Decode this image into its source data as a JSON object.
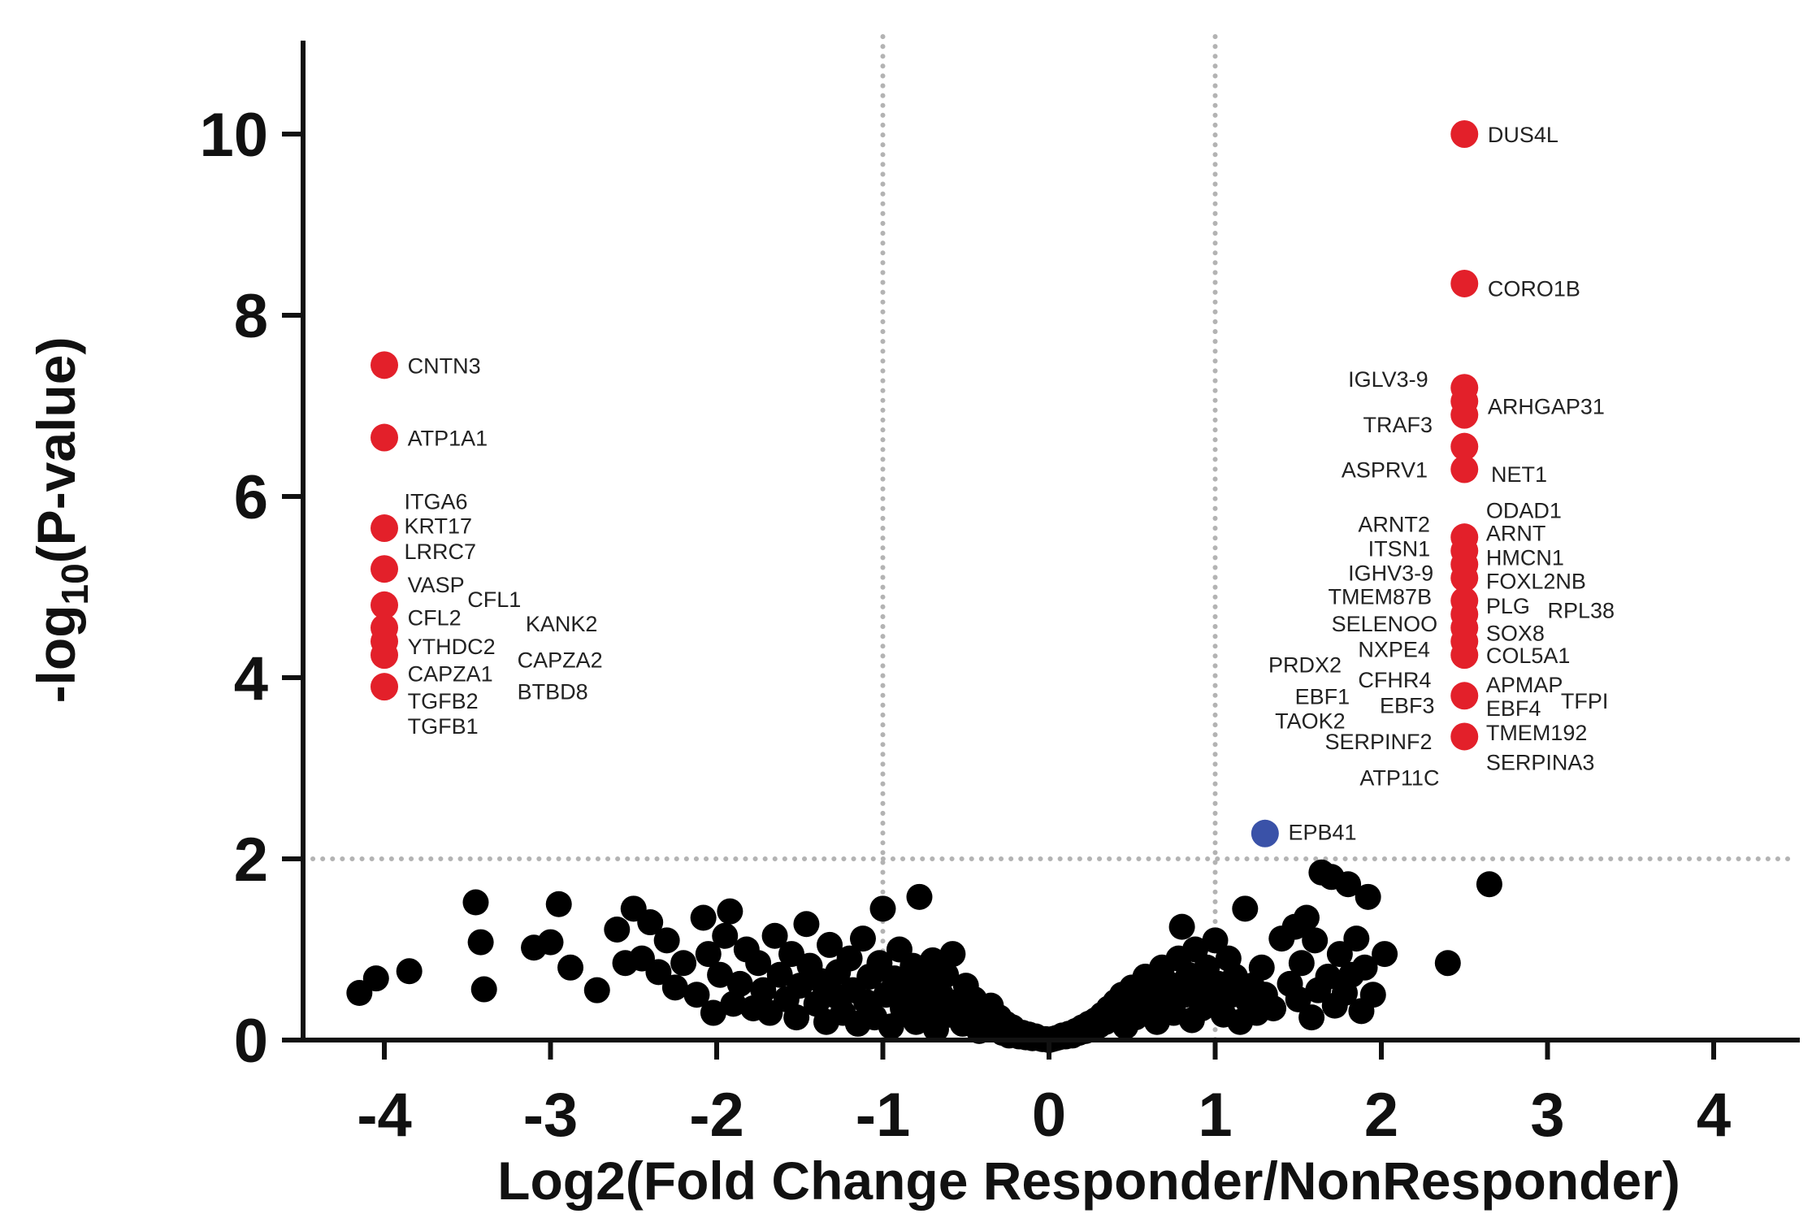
{
  "chart_data": {
    "type": "scatter",
    "title": "",
    "xlabel": "Log2(Fold Change Responder/NonResponder)",
    "ylabel": {
      "prefix": "-log",
      "subscript": "10",
      "suffix": "(P-value)"
    },
    "xlim": [
      -4.5,
      4.5
    ],
    "ylim": [
      0,
      11
    ],
    "xticks": [
      "-4",
      "-3",
      "-2",
      "-1",
      "0",
      "1",
      "2",
      "3",
      "4"
    ],
    "yticks": [
      "0",
      "2",
      "4",
      "6",
      "8",
      "10"
    ],
    "thresholds": {
      "x": [
        -1,
        1
      ],
      "y": 2
    },
    "grid": false,
    "colors": {
      "down": "#e3202a",
      "up": "#e3202a",
      "moderate": "#3a52a8",
      "nonsignificant": "#000000"
    },
    "significant_points": [
      {
        "x": 2.5,
        "y": 10.0,
        "color": "up"
      },
      {
        "x": 2.5,
        "y": 8.35,
        "color": "up"
      },
      {
        "x": 2.5,
        "y": 7.2,
        "color": "up"
      },
      {
        "x": 2.5,
        "y": 7.05,
        "color": "up"
      },
      {
        "x": 2.5,
        "y": 6.9,
        "color": "up"
      },
      {
        "x": 2.5,
        "y": 6.55,
        "color": "up"
      },
      {
        "x": 2.5,
        "y": 6.3,
        "color": "up"
      },
      {
        "x": 2.5,
        "y": 5.55,
        "color": "up"
      },
      {
        "x": 2.5,
        "y": 5.4,
        "color": "up"
      },
      {
        "x": 2.5,
        "y": 5.25,
        "color": "up"
      },
      {
        "x": 2.5,
        "y": 5.1,
        "color": "up"
      },
      {
        "x": 2.5,
        "y": 4.85,
        "color": "up"
      },
      {
        "x": 2.5,
        "y": 4.7,
        "color": "up"
      },
      {
        "x": 2.5,
        "y": 4.55,
        "color": "up"
      },
      {
        "x": 2.5,
        "y": 4.4,
        "color": "up"
      },
      {
        "x": 2.5,
        "y": 4.25,
        "color": "up"
      },
      {
        "x": 2.5,
        "y": 3.8,
        "color": "up"
      },
      {
        "x": 2.5,
        "y": 3.35,
        "color": "up"
      },
      {
        "x": -4.0,
        "y": 7.45,
        "color": "down"
      },
      {
        "x": -4.0,
        "y": 6.65,
        "color": "down"
      },
      {
        "x": -4.0,
        "y": 5.65,
        "color": "down"
      },
      {
        "x": -4.0,
        "y": 5.2,
        "color": "down"
      },
      {
        "x": -4.0,
        "y": 4.8,
        "color": "down"
      },
      {
        "x": -4.0,
        "y": 4.55,
        "color": "down"
      },
      {
        "x": -4.0,
        "y": 4.4,
        "color": "down"
      },
      {
        "x": -4.0,
        "y": 4.25,
        "color": "down"
      },
      {
        "x": -4.0,
        "y": 3.9,
        "color": "down"
      },
      {
        "x": 1.3,
        "y": 2.28,
        "color": "moderate"
      }
    ],
    "background_points": [
      [
        -4.15,
        0.52
      ],
      [
        -4.05,
        0.68
      ],
      [
        -3.85,
        0.76
      ],
      [
        -3.45,
        1.52
      ],
      [
        -3.42,
        1.08
      ],
      [
        -3.4,
        0.56
      ],
      [
        -3.1,
        1.02
      ],
      [
        -3.0,
        1.08
      ],
      [
        -2.95,
        1.5
      ],
      [
        -2.88,
        0.8
      ],
      [
        -2.72,
        0.55
      ],
      [
        -2.6,
        1.22
      ],
      [
        -2.55,
        0.85
      ],
      [
        -2.5,
        1.45
      ],
      [
        -2.45,
        0.9
      ],
      [
        -2.4,
        1.3
      ],
      [
        -2.35,
        0.75
      ],
      [
        -2.3,
        1.1
      ],
      [
        -2.25,
        0.58
      ],
      [
        -2.2,
        0.85
      ],
      [
        -2.12,
        0.5
      ],
      [
        -2.08,
        1.35
      ],
      [
        -2.05,
        0.95
      ],
      [
        -2.02,
        0.3
      ],
      [
        -1.98,
        0.72
      ],
      [
        -1.95,
        1.15
      ],
      [
        -1.92,
        1.42
      ],
      [
        -1.9,
        0.4
      ],
      [
        -1.86,
        0.62
      ],
      [
        -1.82,
        1.0
      ],
      [
        -1.78,
        0.35
      ],
      [
        -1.75,
        0.85
      ],
      [
        -1.72,
        0.55
      ],
      [
        -1.68,
        0.3
      ],
      [
        -1.65,
        1.15
      ],
      [
        -1.62,
        0.72
      ],
      [
        -1.58,
        0.45
      ],
      [
        -1.55,
        0.95
      ],
      [
        -1.52,
        0.25
      ],
      [
        -1.5,
        0.6
      ],
      [
        -1.46,
        1.28
      ],
      [
        -1.44,
        0.82
      ],
      [
        -1.4,
        0.4
      ],
      [
        -1.37,
        0.65
      ],
      [
        -1.34,
        0.2
      ],
      [
        -1.32,
        1.05
      ],
      [
        -1.3,
        0.5
      ],
      [
        -1.27,
        0.75
      ],
      [
        -1.24,
        0.3
      ],
      [
        -1.2,
        0.9
      ],
      [
        -1.18,
        0.55
      ],
      [
        -1.15,
        0.18
      ],
      [
        -1.12,
        1.12
      ],
      [
        -1.1,
        0.42
      ],
      [
        -1.08,
        0.7
      ],
      [
        -1.05,
        0.25
      ],
      [
        -1.02,
        0.85
      ],
      [
        -1.0,
        1.45
      ],
      [
        -0.98,
        0.5
      ],
      [
        -0.95,
        0.15
      ],
      [
        -0.93,
        0.68
      ],
      [
        -0.9,
        1.0
      ],
      [
        -0.88,
        0.35
      ],
      [
        -0.85,
        0.55
      ],
      [
        -0.82,
        0.82
      ],
      [
        -0.8,
        0.2
      ],
      [
        -0.78,
        1.58
      ],
      [
        -0.76,
        0.45
      ],
      [
        -0.74,
        0.65
      ],
      [
        -0.72,
        0.3
      ],
      [
        -0.7,
        0.88
      ],
      [
        -0.68,
        0.12
      ],
      [
        -0.65,
        0.5
      ],
      [
        -0.62,
        0.72
      ],
      [
        -0.6,
        0.28
      ],
      [
        -0.58,
        0.95
      ],
      [
        -0.55,
        0.42
      ],
      [
        -0.52,
        0.18
      ],
      [
        -0.5,
        0.6
      ],
      [
        -0.48,
        0.3
      ],
      [
        -0.45,
        0.45
      ],
      [
        -0.42,
        0.1
      ],
      [
        -0.4,
        0.32
      ],
      [
        -0.38,
        0.2
      ],
      [
        -0.35,
        0.38
      ],
      [
        -0.32,
        0.12
      ],
      [
        -0.3,
        0.25
      ],
      [
        -0.28,
        0.08
      ],
      [
        -0.26,
        0.18
      ],
      [
        -0.24,
        0.05
      ],
      [
        -0.22,
        0.14
      ],
      [
        -0.2,
        0.1
      ],
      [
        -0.18,
        0.04
      ],
      [
        -0.16,
        0.08
      ],
      [
        -0.14,
        0.03
      ],
      [
        -0.12,
        0.06
      ],
      [
        -0.1,
        0.02
      ],
      [
        -0.08,
        0.04
      ],
      [
        -0.06,
        0.02
      ],
      [
        -0.04,
        0.01
      ],
      [
        -0.02,
        0.01
      ],
      [
        0.0,
        0.0
      ],
      [
        0.02,
        0.01
      ],
      [
        0.04,
        0.02
      ],
      [
        0.06,
        0.03
      ],
      [
        0.08,
        0.05
      ],
      [
        0.1,
        0.04
      ],
      [
        0.12,
        0.07
      ],
      [
        0.14,
        0.05
      ],
      [
        0.16,
        0.1
      ],
      [
        0.18,
        0.08
      ],
      [
        0.2,
        0.14
      ],
      [
        0.22,
        0.1
      ],
      [
        0.24,
        0.18
      ],
      [
        0.26,
        0.12
      ],
      [
        0.28,
        0.22
      ],
      [
        0.3,
        0.16
      ],
      [
        0.32,
        0.28
      ],
      [
        0.34,
        0.2
      ],
      [
        0.36,
        0.35
      ],
      [
        0.38,
        0.25
      ],
      [
        0.4,
        0.42
      ],
      [
        0.42,
        0.3
      ],
      [
        0.44,
        0.5
      ],
      [
        0.46,
        0.15
      ],
      [
        0.48,
        0.38
      ],
      [
        0.5,
        0.58
      ],
      [
        0.52,
        0.25
      ],
      [
        0.55,
        0.45
      ],
      [
        0.58,
        0.7
      ],
      [
        0.6,
        0.32
      ],
      [
        0.62,
        0.55
      ],
      [
        0.65,
        0.2
      ],
      [
        0.68,
        0.8
      ],
      [
        0.7,
        0.42
      ],
      [
        0.72,
        0.62
      ],
      [
        0.75,
        0.3
      ],
      [
        0.78,
        0.9
      ],
      [
        0.8,
        1.25
      ],
      [
        0.82,
        0.5
      ],
      [
        0.84,
        0.72
      ],
      [
        0.86,
        0.22
      ],
      [
        0.88,
        1.0
      ],
      [
        0.9,
        0.58
      ],
      [
        0.92,
        0.35
      ],
      [
        0.95,
        0.8
      ],
      [
        0.98,
        0.45
      ],
      [
        1.0,
        1.1
      ],
      [
        1.02,
        0.62
      ],
      [
        1.05,
        0.28
      ],
      [
        1.08,
        0.9
      ],
      [
        1.1,
        0.5
      ],
      [
        1.12,
        0.7
      ],
      [
        1.15,
        0.2
      ],
      [
        1.18,
        1.45
      ],
      [
        1.2,
        0.42
      ],
      [
        1.22,
        0.6
      ],
      [
        1.25,
        0.3
      ],
      [
        1.28,
        0.8
      ],
      [
        1.3,
        0.5
      ],
      [
        1.35,
        0.35
      ],
      [
        1.4,
        1.12
      ],
      [
        1.45,
        0.62
      ],
      [
        1.48,
        1.25
      ],
      [
        1.5,
        0.45
      ],
      [
        1.52,
        0.85
      ],
      [
        1.55,
        1.35
      ],
      [
        1.58,
        0.25
      ],
      [
        1.6,
        1.1
      ],
      [
        1.62,
        0.55
      ],
      [
        1.64,
        1.85
      ],
      [
        1.68,
        0.7
      ],
      [
        1.7,
        1.8
      ],
      [
        1.72,
        0.38
      ],
      [
        1.75,
        0.95
      ],
      [
        1.78,
        0.52
      ],
      [
        1.8,
        1.72
      ],
      [
        1.82,
        0.72
      ],
      [
        1.85,
        1.12
      ],
      [
        1.88,
        0.32
      ],
      [
        1.9,
        0.8
      ],
      [
        1.92,
        1.58
      ],
      [
        1.95,
        0.5
      ],
      [
        2.02,
        0.95
      ],
      [
        2.4,
        0.85
      ],
      [
        2.65,
        1.72
      ]
    ],
    "gene_labels": [
      {
        "text": "DUS4L",
        "x": 2.64,
        "y": 10.0
      },
      {
        "text": "CORO1B",
        "x": 2.64,
        "y": 8.3
      },
      {
        "text": "IGLV3-9",
        "x": 1.8,
        "y": 7.3
      },
      {
        "text": "TRAF3",
        "x": 1.89,
        "y": 6.8
      },
      {
        "text": "ARHGAP31",
        "x": 2.64,
        "y": 7.0
      },
      {
        "text": "ASPRV1",
        "x": 1.76,
        "y": 6.3
      },
      {
        "text": "NET1",
        "x": 2.66,
        "y": 6.25
      },
      {
        "text": "ODAD1",
        "x": 2.63,
        "y": 5.85
      },
      {
        "text": "ARNT2",
        "x": 1.86,
        "y": 5.7
      },
      {
        "text": "ARNT",
        "x": 2.63,
        "y": 5.6
      },
      {
        "text": "ITSN1",
        "x": 1.92,
        "y": 5.43
      },
      {
        "text": "HMCN1",
        "x": 2.63,
        "y": 5.33
      },
      {
        "text": "IGHV3-9",
        "x": 1.8,
        "y": 5.16
      },
      {
        "text": "FOXL2NB",
        "x": 2.63,
        "y": 5.07
      },
      {
        "text": "TMEM87B",
        "x": 1.68,
        "y": 4.9
      },
      {
        "text": "PLG",
        "x": 2.63,
        "y": 4.8
      },
      {
        "text": "RPL38",
        "x": 3.0,
        "y": 4.75
      },
      {
        "text": "SELENOO",
        "x": 1.7,
        "y": 4.6
      },
      {
        "text": "SOX8",
        "x": 2.63,
        "y": 4.5
      },
      {
        "text": "NXPE4",
        "x": 1.86,
        "y": 4.32
      },
      {
        "text": "COL5A1",
        "x": 2.63,
        "y": 4.25
      },
      {
        "text": "PRDX2",
        "x": 1.32,
        "y": 4.15
      },
      {
        "text": "CFHR4",
        "x": 1.86,
        "y": 3.98
      },
      {
        "text": "APMAP",
        "x": 2.63,
        "y": 3.93
      },
      {
        "text": "EBF1",
        "x": 1.48,
        "y": 3.8
      },
      {
        "text": "TFPI",
        "x": 3.08,
        "y": 3.75
      },
      {
        "text": "EBF3",
        "x": 1.99,
        "y": 3.7
      },
      {
        "text": "EBF4",
        "x": 2.63,
        "y": 3.67
      },
      {
        "text": "TAOK2",
        "x": 1.36,
        "y": 3.53
      },
      {
        "text": "TMEM192",
        "x": 2.63,
        "y": 3.4
      },
      {
        "text": "SERPINF2",
        "x": 1.66,
        "y": 3.3
      },
      {
        "text": "SERPINA3",
        "x": 2.63,
        "y": 3.07
      },
      {
        "text": "ATP11C",
        "x": 1.87,
        "y": 2.9
      },
      {
        "text": "EPB41",
        "x": 1.44,
        "y": 2.3
      },
      {
        "text": "CNTN3",
        "x": -3.86,
        "y": 7.45
      },
      {
        "text": "ATP1A1",
        "x": -3.86,
        "y": 6.65
      },
      {
        "text": "ITGA6",
        "x": -3.88,
        "y": 5.95
      },
      {
        "text": "KRT17",
        "x": -3.88,
        "y": 5.68
      },
      {
        "text": "LRRC7",
        "x": -3.88,
        "y": 5.4
      },
      {
        "text": "VASP",
        "x": -3.86,
        "y": 5.03
      },
      {
        "text": "CFL1",
        "x": -3.5,
        "y": 4.87
      },
      {
        "text": "CFL2",
        "x": -3.86,
        "y": 4.67
      },
      {
        "text": "KANK2",
        "x": -3.15,
        "y": 4.6
      },
      {
        "text": "YTHDC2",
        "x": -3.86,
        "y": 4.35
      },
      {
        "text": "CAPZA2",
        "x": -3.2,
        "y": 4.2
      },
      {
        "text": "CAPZA1",
        "x": -3.86,
        "y": 4.05
      },
      {
        "text": "BTBD8",
        "x": -3.2,
        "y": 3.85
      },
      {
        "text": "TGFB2",
        "x": -3.86,
        "y": 3.75
      },
      {
        "text": "TGFB1",
        "x": -3.86,
        "y": 3.47
      }
    ]
  }
}
